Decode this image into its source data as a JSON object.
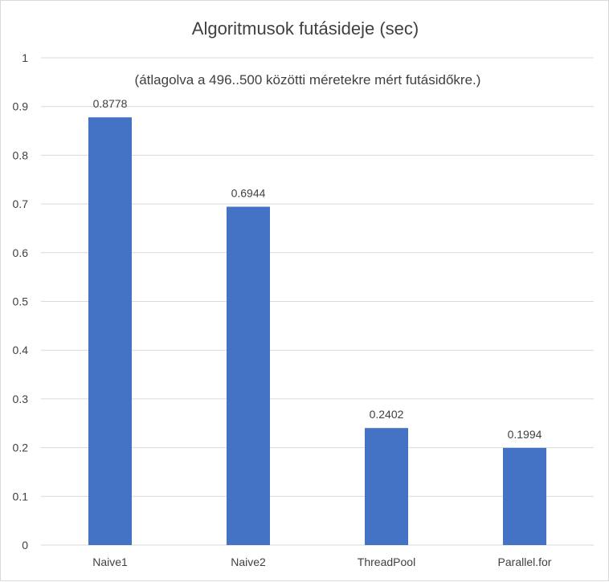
{
  "chart_data": {
    "type": "bar",
    "title": "Algoritmusok futásideje (sec)",
    "subtitle": "(átlagolva a 496..500 közötti méretekre mért futásidőkre.)",
    "categories": [
      "Naive1",
      "Naive2",
      "ThreadPool",
      "Parallel.for"
    ],
    "values": [
      0.8778,
      0.6944,
      0.2402,
      0.1994
    ],
    "data_labels": [
      "0.8778",
      "0.6944",
      "0.2402",
      "0.1994"
    ],
    "yticks": [
      "0",
      "0.1",
      "0.2",
      "0.3",
      "0.4",
      "0.5",
      "0.6",
      "0.7",
      "0.8",
      "0.9",
      "1"
    ],
    "ylim": [
      0,
      1
    ],
    "grid": true,
    "legend": "none",
    "bar_color": "#4472C4",
    "xlabel": "",
    "ylabel": ""
  }
}
